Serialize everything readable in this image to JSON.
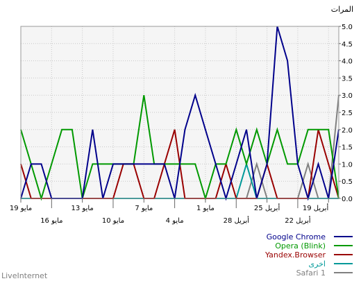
{
  "chart_data": {
    "type": "line",
    "unit_label": "المرات",
    "ylim": [
      0,
      5
    ],
    "y_ticks": [
      "0.0",
      "0.5",
      "1.0",
      "1.5",
      "2.0",
      "2.5",
      "3.0",
      "3.5",
      "4.0",
      "4.5",
      "5.0"
    ],
    "x_tick_labels": {
      "row1": [
        "19 مايو",
        "13 مايو",
        "7 مايو",
        "1 مايو",
        "25 أبريل",
        "19 أبريل"
      ],
      "row2": [
        "16 مايو",
        "10 مايو",
        "4 مايو",
        "28 أبريل",
        "22 أبريل"
      ]
    },
    "grid": true,
    "legend_position": "bottom-right",
    "footer": "LiveInternet",
    "series": [
      {
        "name": "Google Chrome",
        "color": "#00008b",
        "values": [
          0,
          1,
          1,
          0,
          0,
          0,
          0,
          2,
          0,
          1,
          1,
          1,
          1,
          1,
          1,
          0,
          2,
          3,
          2,
          1,
          0,
          1,
          2,
          0,
          1,
          5,
          4,
          1,
          0,
          1,
          0,
          2
        ]
      },
      {
        "name": "Opera (Blink)",
        "color": "#009900",
        "values": [
          2,
          1,
          0,
          1,
          2,
          2,
          0,
          1,
          1,
          1,
          1,
          1,
          3,
          1,
          1,
          1,
          1,
          1,
          0,
          1,
          1,
          2,
          1,
          2,
          1,
          2,
          1,
          1,
          2,
          2,
          2,
          0
        ]
      },
      {
        "name": "Yandex.Browser",
        "color": "#990000",
        "values": [
          1,
          0,
          0,
          0,
          0,
          0,
          0,
          0,
          0,
          0,
          1,
          1,
          0,
          0,
          1,
          2,
          0,
          0,
          0,
          0,
          1,
          0,
          0,
          0,
          1,
          0,
          0,
          0,
          0,
          2,
          1,
          0
        ]
      },
      {
        "name": "اخرى",
        "color": "#009999",
        "values": [
          0,
          0,
          0,
          0,
          0,
          0,
          0,
          0,
          0,
          0,
          0,
          0,
          0,
          0,
          0,
          0,
          0,
          0,
          0,
          0,
          0,
          0,
          1,
          0,
          0,
          0,
          0,
          0,
          0,
          0,
          0,
          0
        ]
      },
      {
        "name": "Safari 1",
        "color": "#808080",
        "values": [
          0,
          0,
          0,
          0,
          0,
          0,
          0,
          0,
          0,
          0,
          0,
          0,
          0,
          0,
          0,
          0,
          0,
          0,
          0,
          0,
          0,
          0,
          0,
          1,
          0,
          0,
          0,
          0,
          1,
          0,
          0,
          3
        ]
      }
    ]
  }
}
